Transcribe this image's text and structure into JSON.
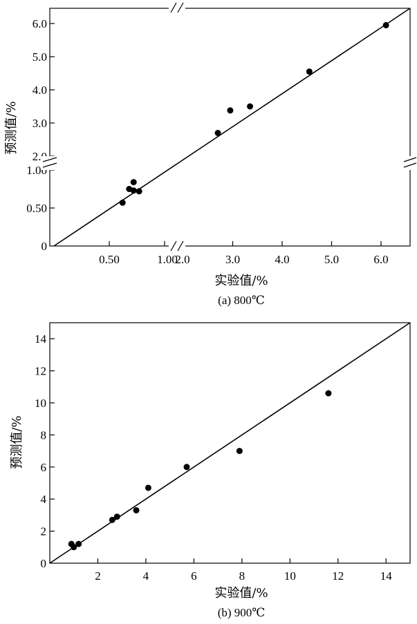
{
  "chart_data": [
    {
      "type": "scatter",
      "caption": "(a) 800℃",
      "xlabel": "实验值/%",
      "ylabel": "预测值/%",
      "axis_break": true,
      "x_low_ticks": [
        "0.50",
        "1.00"
      ],
      "x_high_ticks": [
        "2.0",
        "3.0",
        "4.0",
        "5.0",
        "6.0"
      ],
      "y_low_ticks": [
        "0",
        "0.50",
        "1.00"
      ],
      "y_high_ticks": [
        "2.0",
        "3.0",
        "4.0",
        "5.0",
        "6.0"
      ],
      "xlim_low": [
        0,
        1.1
      ],
      "xlim_high": [
        1.9,
        6.3
      ],
      "ylim_low": [
        0,
        1.05
      ],
      "ylim_high": [
        1.9,
        6.5
      ],
      "points": [
        {
          "x": 0.62,
          "y": 0.57
        },
        {
          "x": 0.68,
          "y": 0.75
        },
        {
          "x": 0.72,
          "y": 0.73
        },
        {
          "x": 0.72,
          "y": 0.84
        },
        {
          "x": 0.77,
          "y": 0.72
        },
        {
          "x": 2.7,
          "y": 2.7
        },
        {
          "x": 2.95,
          "y": 3.38
        },
        {
          "x": 3.35,
          "y": 3.5
        },
        {
          "x": 4.55,
          "y": 4.55
        },
        {
          "x": 6.1,
          "y": 5.95
        }
      ],
      "reference_line": "y = x"
    },
    {
      "type": "scatter",
      "caption": "(b) 900℃",
      "xlabel": "实验值/%",
      "ylabel": "预测值/%",
      "x_ticks": [
        "0",
        "2",
        "4",
        "6",
        "8",
        "10",
        "12",
        "14"
      ],
      "y_ticks": [
        "0",
        "2",
        "4",
        "6",
        "8",
        "10",
        "12",
        "14"
      ],
      "xlim": [
        0,
        15
      ],
      "ylim": [
        0,
        15
      ],
      "points": [
        {
          "x": 0.9,
          "y": 1.2
        },
        {
          "x": 1.0,
          "y": 1.0
        },
        {
          "x": 1.2,
          "y": 1.2
        },
        {
          "x": 2.6,
          "y": 2.7
        },
        {
          "x": 2.8,
          "y": 2.9
        },
        {
          "x": 3.6,
          "y": 3.3
        },
        {
          "x": 4.1,
          "y": 4.7
        },
        {
          "x": 5.7,
          "y": 6.0
        },
        {
          "x": 7.9,
          "y": 7.0
        },
        {
          "x": 11.6,
          "y": 10.6
        }
      ],
      "reference_line": "y = x"
    }
  ]
}
